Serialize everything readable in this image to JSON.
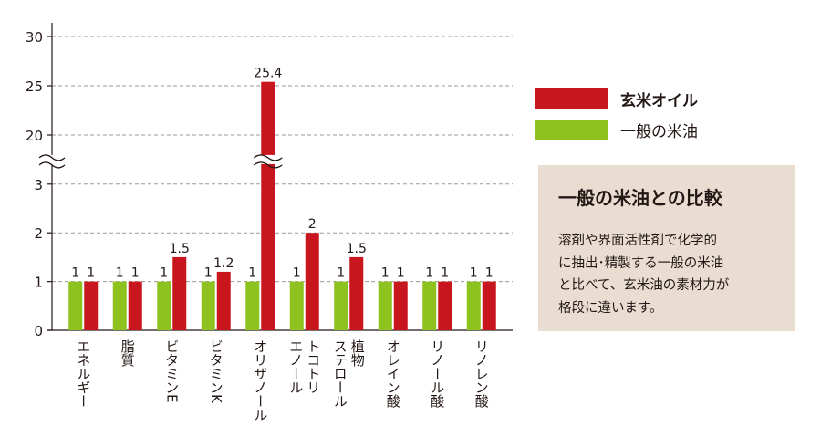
{
  "chart_data": {
    "type": "bar",
    "categories": [
      "エネルギー",
      "脂質",
      "ビタミンE",
      "ビタミンK",
      "オリザノール",
      "トコトリエノール",
      "植物ステロール",
      "オレイン酸",
      "リノール酸",
      "リノレン酸"
    ],
    "category_lines": [
      [
        "エネルギー"
      ],
      [
        "脂質"
      ],
      [
        "ビタミンE"
      ],
      [
        "ビタミンK"
      ],
      [
        "オリザノール"
      ],
      [
        "トコトリ",
        "エノール"
      ],
      [
        "植物",
        "ステロール"
      ],
      [
        "オレイン酸"
      ],
      [
        "リノール酸"
      ],
      [
        "リノレン酸"
      ]
    ],
    "series": [
      {
        "name": "一般の米油",
        "color": "#8dc21f",
        "values": [
          1,
          1,
          1,
          1,
          1,
          1,
          1,
          1,
          1,
          1
        ]
      },
      {
        "name": "玄米オイル",
        "color": "#c8161e",
        "values": [
          1,
          1,
          1.5,
          1.2,
          25.4,
          2,
          1.5,
          1,
          1,
          1
        ]
      }
    ],
    "y_ticks": [
      "0",
      "1",
      "2",
      "3",
      "20",
      "25",
      "30"
    ],
    "y_axis_break": {
      "lower_range": [
        0,
        3
      ],
      "upper_range": [
        20,
        30
      ]
    },
    "grid": true,
    "gridline_style": "dashed",
    "legend_position": "right"
  },
  "legend": [
    {
      "label": "玄米オイル",
      "color": "#c8161e",
      "bold": true
    },
    {
      "label": "一般の米油",
      "color": "#8dc21f",
      "bold": false
    }
  ],
  "info_box": {
    "title": "一般の米油との比較",
    "lines": [
      "溶剤や界面活性剤で化学的",
      "に抽出･精製する一般の米油",
      "と比べて、玄米油の素材力が",
      "格段に違います。"
    ],
    "background": "#e9ddd2"
  }
}
